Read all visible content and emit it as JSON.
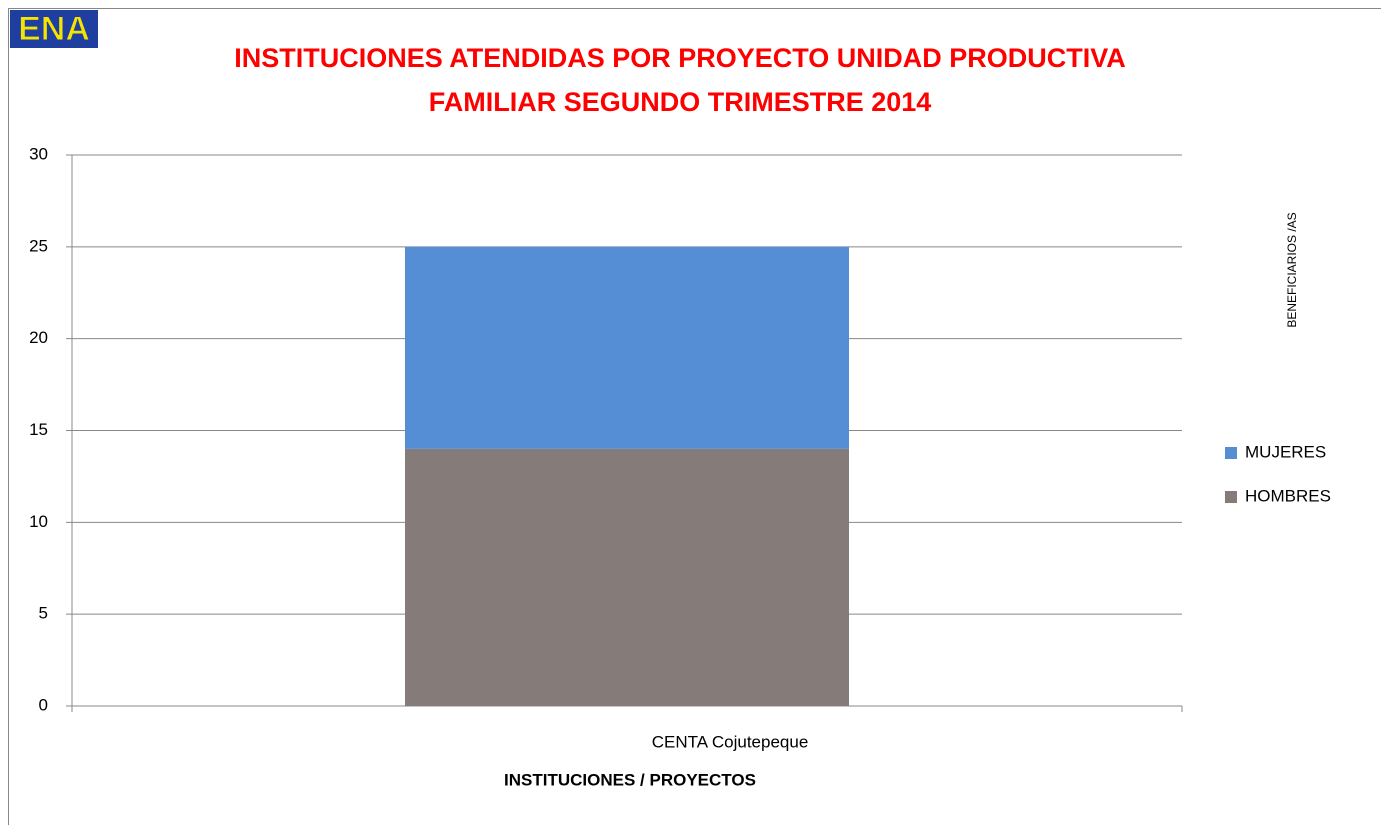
{
  "logo": "ENA",
  "chart_data": {
    "type": "stacked_bar",
    "title": "INSTITUCIONES ATENDIDAS POR PROYECTO UNIDAD PRODUCTIVA\nFAMILIAR SEGUNDO TRIMESTRE 2014",
    "x_label": "INSTITUCIONES / PROYECTOS",
    "y_label": "BENEFICIARIOS /AS",
    "categories": [
      "CENTA Cojutepeque"
    ],
    "series": [
      {
        "name": "HOMBRES",
        "color": "#857c7a",
        "values": [
          14
        ]
      },
      {
        "name": "MUJERES",
        "color": "#558ed5",
        "values": [
          11
        ]
      }
    ],
    "ylim": [
      0,
      30
    ],
    "yticks": [
      0,
      5,
      10,
      15,
      20,
      25,
      30
    ],
    "grid": true,
    "legend": "right"
  }
}
